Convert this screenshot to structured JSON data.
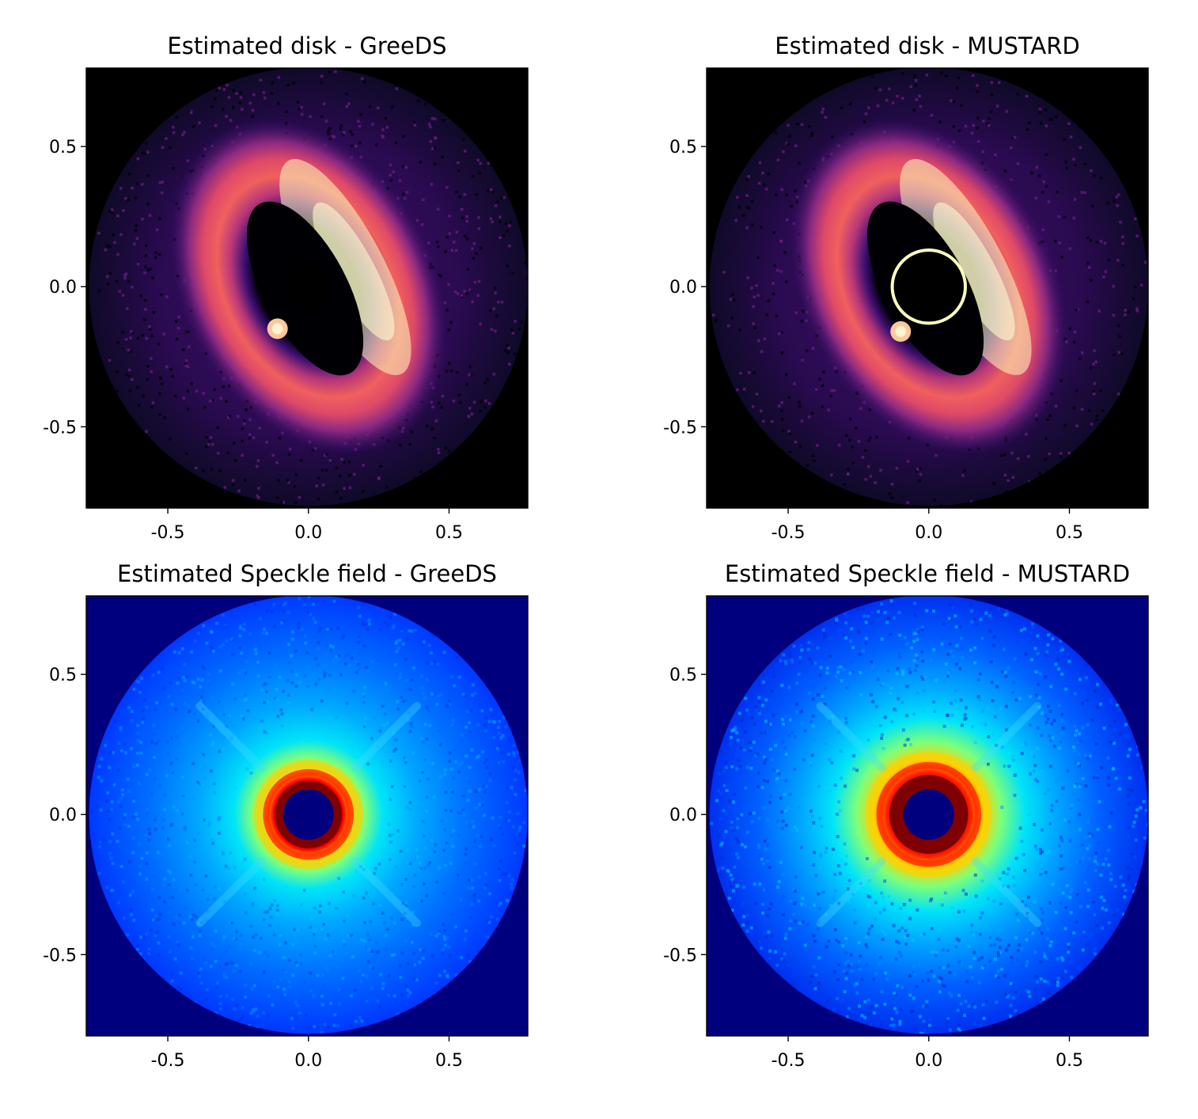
{
  "figure": {
    "panel_titles": [
      "Estimated disk - GreeDS",
      "Estimated disk - MUSTARD",
      "Estimated Speckle field - GreeDS",
      "Estimated Speckle field - MUSTARD"
    ]
  },
  "chart_data": [
    {
      "type": "heatmap",
      "title": "Estimated disk - GreeDS",
      "colormap": "magma",
      "xlim": [
        -0.79,
        0.78
      ],
      "ylim": [
        -0.79,
        0.78
      ],
      "xticks": [
        -0.5,
        0.0,
        0.5
      ],
      "yticks": [
        -0.5,
        0.0,
        0.5
      ],
      "xtick_labels": [
        "-0.5",
        "0.0",
        "0.5"
      ],
      "ytick_labels": [
        "-0.5",
        "0.0",
        "0.5"
      ],
      "field_radius": 0.78,
      "disk_angle_deg": 62,
      "disk_major": 0.55,
      "disk_minor": 0.27,
      "center_mask_radius": 0.08,
      "planet": [
        -0.11,
        -0.15
      ]
    },
    {
      "type": "heatmap",
      "title": "Estimated disk - MUSTARD",
      "colormap": "magma",
      "xlim": [
        -0.79,
        0.78
      ],
      "ylim": [
        -0.79,
        0.78
      ],
      "xticks": [
        -0.5,
        0.0,
        0.5
      ],
      "yticks": [
        -0.5,
        0.0,
        0.5
      ],
      "xtick_labels": [
        "-0.5",
        "0.0",
        "0.5"
      ],
      "ytick_labels": [
        "-0.5",
        "0.0",
        "0.5"
      ],
      "field_radius": 0.78,
      "disk_angle_deg": 62,
      "disk_major": 0.55,
      "disk_minor": 0.27,
      "center_mask_radius": 0.13,
      "planet": [
        -0.1,
        -0.16
      ]
    },
    {
      "type": "heatmap",
      "title": "Estimated Speckle field - GreeDS",
      "colormap": "jet",
      "xlim": [
        -0.79,
        0.78
      ],
      "ylim": [
        -0.79,
        0.78
      ],
      "xticks": [
        -0.5,
        0.0,
        0.5
      ],
      "yticks": [
        -0.5,
        0.0,
        0.5
      ],
      "xtick_labels": [
        "-0.5",
        "0.0",
        "0.5"
      ],
      "ytick_labels": [
        "-0.5",
        "0.0",
        "0.5"
      ],
      "field_radius": 0.78,
      "center_mask_radius": 0.09,
      "ring_radius": 0.12
    },
    {
      "type": "heatmap",
      "title": "Estimated Speckle field - MUSTARD",
      "colormap": "jet",
      "xlim": [
        -0.79,
        0.78
      ],
      "ylim": [
        -0.79,
        0.78
      ],
      "xticks": [
        -0.5,
        0.0,
        0.5
      ],
      "yticks": [
        -0.5,
        0.0,
        0.5
      ],
      "xtick_labels": [
        "-0.5",
        "0.0",
        "0.5"
      ],
      "ytick_labels": [
        "-0.5",
        "0.0",
        "0.5"
      ],
      "field_radius": 0.78,
      "center_mask_radius": 0.09,
      "ring_radius": 0.14
    }
  ]
}
